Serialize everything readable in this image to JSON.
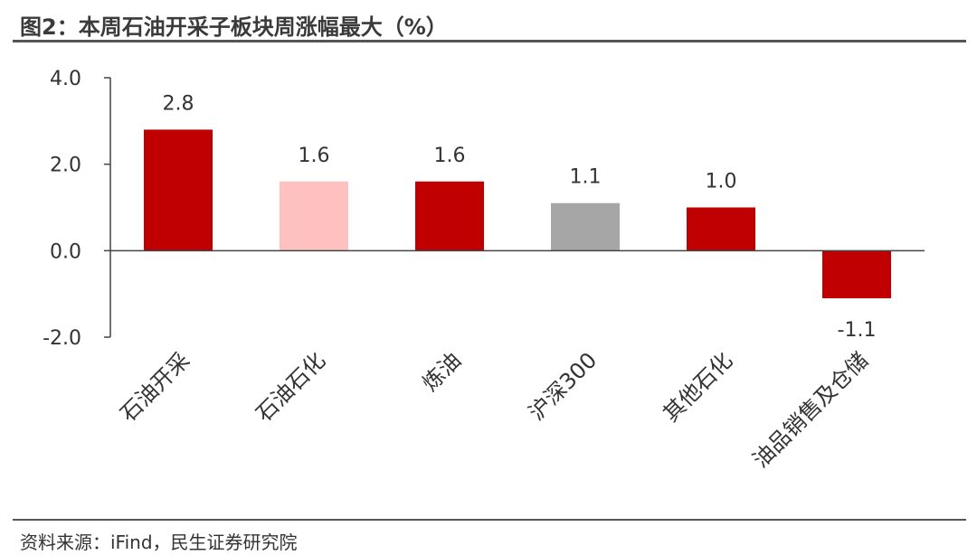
{
  "title": "图2：本周石油开采子板块周涨幅最大（%）",
  "source": "资料来源：iFind，民生证券研究院",
  "chart_data": {
    "type": "bar",
    "categories": [
      "石油开采",
      "石油石化",
      "炼油",
      "沪深300",
      "其他石化",
      "油品销售及仓储"
    ],
    "values": [
      2.8,
      1.6,
      1.6,
      1.1,
      1.0,
      -1.1
    ],
    "data_labels": [
      "2.8",
      "1.6",
      "1.6",
      "1.1",
      "1.0",
      "-1.1"
    ],
    "bar_colors": [
      "#c00000",
      "#ffc0c0",
      "#c00000",
      "#a6a6a6",
      "#c00000",
      "#c00000"
    ],
    "ylim": [
      -2.0,
      4.0
    ],
    "yticks": [
      4.0,
      2.0,
      0.0,
      -2.0
    ],
    "ytick_labels": [
      "4.0",
      "2.0",
      "0.0",
      "-2.0"
    ],
    "xlabel": "",
    "ylabel": "",
    "grid": false
  }
}
